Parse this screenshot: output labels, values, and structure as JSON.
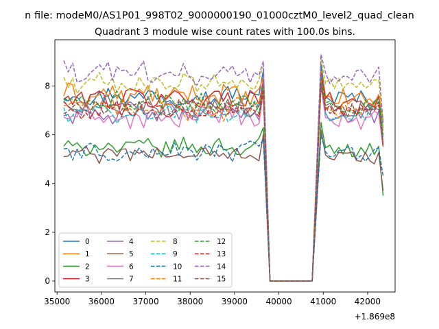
{
  "header": {
    "suptitle": "n file: modeM0/AS1P01_998T02_9000000190_01000cztM0_level2_quad_clean"
  },
  "chart_data": {
    "type": "line",
    "title": "Quadrant 3 module wise count rates with 100.0s bins.",
    "xlabel": "",
    "ylabel": "",
    "x_offset_label": "+1.869e8",
    "x_offset": 186900000,
    "xlim": [
      34950,
      42620
    ],
    "ylim": [
      -0.45,
      9.9
    ],
    "xticks": [
      35000,
      36000,
      37000,
      38000,
      39000,
      40000,
      41000,
      42000
    ],
    "xtick_labels": [
      "35000",
      "36000",
      "37000",
      "38000",
      "39000",
      "40000",
      "41000",
      "42000"
    ],
    "yticks": [
      0,
      2,
      4,
      6,
      8
    ],
    "ytick_labels": [
      "0",
      "2",
      "4",
      "6",
      "8"
    ],
    "grid": false,
    "legend": {
      "placement": "lower-left",
      "columns": 4
    },
    "gap": {
      "drop_start": 39650,
      "zero_start": 39800,
      "zero_end": 40750,
      "rise_end": 40950
    },
    "segment1": {
      "start": 35150,
      "end": 39650,
      "step": 100
    },
    "segment2": {
      "start": 40950,
      "end": 42300,
      "step": 100
    },
    "series": [
      {
        "name": "0",
        "color": "#1f77b4",
        "dashed": false,
        "base": 7.6,
        "amp": 0.35,
        "end": 6.3,
        "peak": 8.9
      },
      {
        "name": "1",
        "color": "#ff7f0e",
        "dashed": false,
        "base": 7.6,
        "amp": 0.4,
        "end": 6.6,
        "peak": 8.6
      },
      {
        "name": "2",
        "color": "#2ca02c",
        "dashed": false,
        "base": 5.5,
        "amp": 0.3,
        "end": 3.5,
        "peak": 6.5
      },
      {
        "name": "3",
        "color": "#d62728",
        "dashed": false,
        "base": 7.5,
        "amp": 0.35,
        "end": 5.6,
        "peak": 8.5
      },
      {
        "name": "4",
        "color": "#9467bd",
        "dashed": false,
        "base": 6.9,
        "amp": 0.35,
        "end": 5.5,
        "peak": 8.4
      },
      {
        "name": "5",
        "color": "#8c564b",
        "dashed": false,
        "base": 5.2,
        "amp": 0.3,
        "end": 3.7,
        "peak": 6.2
      },
      {
        "name": "6",
        "color": "#e377c2",
        "dashed": false,
        "base": 6.7,
        "amp": 0.4,
        "end": 5.5,
        "peak": 8.0
      },
      {
        "name": "7",
        "color": "#7f7f7f",
        "dashed": false,
        "base": 7.2,
        "amp": 0.35,
        "end": 5.9,
        "peak": 8.2
      },
      {
        "name": "8",
        "color": "#bcbd22",
        "dashed": true,
        "base": 8.1,
        "amp": 0.35,
        "end": 6.2,
        "peak": 9.1
      },
      {
        "name": "9",
        "color": "#17becf",
        "dashed": true,
        "base": 6.9,
        "amp": 0.35,
        "end": 5.8,
        "peak": 8.1
      },
      {
        "name": "10",
        "color": "#1f77b4",
        "dashed": true,
        "base": 5.3,
        "amp": 0.35,
        "end": 4.3,
        "peak": 6.0
      },
      {
        "name": "11",
        "color": "#ff7f0e",
        "dashed": true,
        "base": 7.1,
        "amp": 0.4,
        "end": 5.5,
        "peak": 8.2
      },
      {
        "name": "12",
        "color": "#2ca02c",
        "dashed": true,
        "base": 7.3,
        "amp": 0.35,
        "end": 6.0,
        "peak": 8.3
      },
      {
        "name": "13",
        "color": "#d62728",
        "dashed": true,
        "base": 7.0,
        "amp": 0.35,
        "end": 5.6,
        "peak": 8.0
      },
      {
        "name": "14",
        "color": "#9467bd",
        "dashed": true,
        "base": 8.5,
        "amp": 0.4,
        "end": 6.5,
        "peak": 9.3
      },
      {
        "name": "15",
        "color": "#8c564b",
        "dashed": true,
        "base": 7.1,
        "amp": 0.35,
        "end": 5.5,
        "peak": 8.1
      }
    ]
  }
}
